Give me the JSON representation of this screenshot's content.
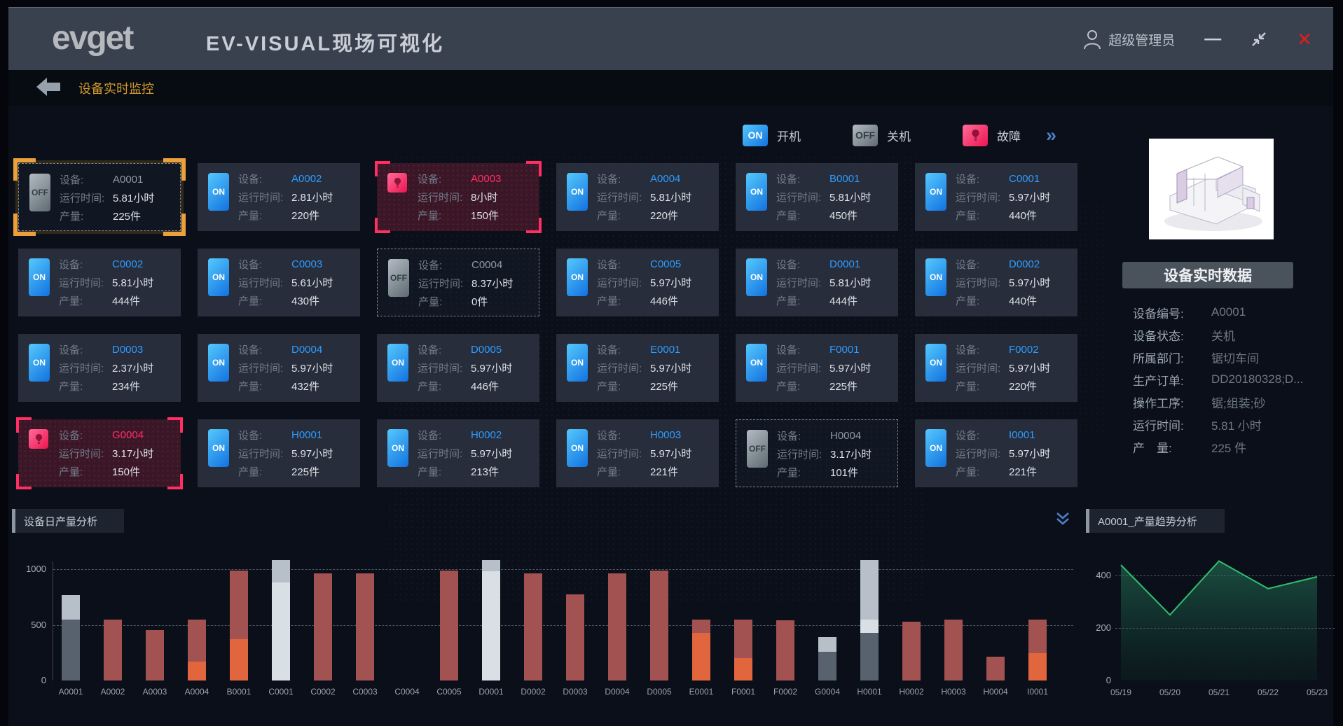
{
  "titlebar": {
    "logo": "evget",
    "title": "EV-VISUAL现场可视化",
    "user": "超级管理员",
    "icons": {
      "minimize": "—",
      "close": "✕"
    }
  },
  "breadcrumb": {
    "label": "设备实时监控"
  },
  "legend": {
    "on_badge": "ON",
    "on": "开机",
    "off_badge": "OFF",
    "off": "关机",
    "fault": "故障",
    "more": "»"
  },
  "card_labels": {
    "device": "设备:",
    "runtime": "运行时间:",
    "output": "产量:",
    "on_badge": "ON",
    "off_badge": "OFF"
  },
  "devices": [
    {
      "id": "A0001",
      "status": "off",
      "runtime": "5.81小时",
      "output": "225件",
      "selected": true
    },
    {
      "id": "A0002",
      "status": "on",
      "runtime": "2.81小时",
      "output": "220件"
    },
    {
      "id": "A0003",
      "status": "fault",
      "runtime": "8小时",
      "output": "150件"
    },
    {
      "id": "A0004",
      "status": "on",
      "runtime": "5.81小时",
      "output": "220件"
    },
    {
      "id": "B0001",
      "status": "on",
      "runtime": "5.81小时",
      "output": "450件"
    },
    {
      "id": "C0001",
      "status": "on",
      "runtime": "5.97小时",
      "output": "440件"
    },
    {
      "id": "C0002",
      "status": "on",
      "runtime": "5.81小时",
      "output": "444件"
    },
    {
      "id": "C0003",
      "status": "on",
      "runtime": "5.61小时",
      "output": "430件"
    },
    {
      "id": "C0004",
      "status": "off",
      "runtime": "8.37小时",
      "output": "0件"
    },
    {
      "id": "C0005",
      "status": "on",
      "runtime": "5.97小时",
      "output": "446件"
    },
    {
      "id": "D0001",
      "status": "on",
      "runtime": "5.81小时",
      "output": "444件"
    },
    {
      "id": "D0002",
      "status": "on",
      "runtime": "5.97小时",
      "output": "440件"
    },
    {
      "id": "D0003",
      "status": "on",
      "runtime": "2.37小时",
      "output": "234件"
    },
    {
      "id": "D0004",
      "status": "on",
      "runtime": "5.97小时",
      "output": "432件"
    },
    {
      "id": "D0005",
      "status": "on",
      "runtime": "5.97小时",
      "output": "446件"
    },
    {
      "id": "E0001",
      "status": "on",
      "runtime": "5.97小时",
      "output": "225件"
    },
    {
      "id": "F0001",
      "status": "on",
      "runtime": "5.97小时",
      "output": "225件"
    },
    {
      "id": "F0002",
      "status": "on",
      "runtime": "5.97小时",
      "output": "220件"
    },
    {
      "id": "G0004",
      "status": "fault",
      "runtime": "3.17小时",
      "output": "150件"
    },
    {
      "id": "H0001",
      "status": "on",
      "runtime": "5.97小时",
      "output": "225件"
    },
    {
      "id": "H0002",
      "status": "on",
      "runtime": "5.97小时",
      "output": "213件"
    },
    {
      "id": "H0003",
      "status": "on",
      "runtime": "5.97小时",
      "output": "221件"
    },
    {
      "id": "H0004",
      "status": "off",
      "runtime": "3.17小时",
      "output": "101件"
    },
    {
      "id": "I0001",
      "status": "on",
      "runtime": "5.97小时",
      "output": "221件"
    }
  ],
  "detail_panel": {
    "title": "设备实时数据",
    "rows": [
      {
        "label": "设备编号:",
        "value": "A0001"
      },
      {
        "label": "设备状态:",
        "value": "关机"
      },
      {
        "label": "所属部门:",
        "value": "锯切车间"
      },
      {
        "label": "生产订单:",
        "value": "DD20180328;D..."
      },
      {
        "label": "操作工序:",
        "value": "锯;组装;砂"
      },
      {
        "label": "运行时间:",
        "value": "5.81 小时"
      },
      {
        "label": "产　量:",
        "value": "225 件"
      }
    ]
  },
  "chart_data": [
    {
      "type": "bar",
      "title": "设备日产量分析",
      "stacked": true,
      "ylim": [
        0,
        1100
      ],
      "yticks": [
        0,
        500,
        1000
      ],
      "grid": "dashed-horizontal",
      "legend_position": "none",
      "palette": {
        "red": "#a35252",
        "orange": "#e1663e",
        "slate": "#57626e",
        "lightgray": "#b7c0c8",
        "white": "#d9e0e5"
      },
      "categories": [
        "A0001",
        "A0002",
        "A0003",
        "A0004",
        "B0001",
        "C0001",
        "C0002",
        "C0003",
        "C0004",
        "C0005",
        "D0001",
        "D0002",
        "D0003",
        "D0004",
        "D0005",
        "E0001",
        "F0001",
        "F0002",
        "G0004",
        "H0001",
        "H0002",
        "H0003",
        "H0004",
        "I0001"
      ],
      "bars": [
        [
          {
            "color": "slate",
            "value": 550
          },
          {
            "color": "lightgray",
            "value": 220
          }
        ],
        [
          {
            "color": "red",
            "value": 545
          }
        ],
        [
          {
            "color": "red",
            "value": 450
          }
        ],
        [
          {
            "color": "orange",
            "value": 170
          },
          {
            "color": "red",
            "value": 375
          }
        ],
        [
          {
            "color": "orange",
            "value": 370
          },
          {
            "color": "red",
            "value": 620
          }
        ],
        [
          {
            "color": "white",
            "value": 880
          },
          {
            "color": "lightgray",
            "value": 200
          }
        ],
        [
          {
            "color": "red",
            "value": 960
          }
        ],
        [
          {
            "color": "red",
            "value": 965
          }
        ],
        [],
        [
          {
            "color": "red",
            "value": 985
          }
        ],
        [
          {
            "color": "white",
            "value": 980
          },
          {
            "color": "lightgray",
            "value": 100
          }
        ],
        [
          {
            "color": "red",
            "value": 960
          }
        ],
        [
          {
            "color": "red",
            "value": 775
          }
        ],
        [
          {
            "color": "red",
            "value": 965
          }
        ],
        [
          {
            "color": "red",
            "value": 985
          }
        ],
        [
          {
            "color": "orange",
            "value": 430
          },
          {
            "color": "red",
            "value": 120
          }
        ],
        [
          {
            "color": "orange",
            "value": 200
          },
          {
            "color": "red",
            "value": 345
          }
        ],
        [
          {
            "color": "red",
            "value": 540
          }
        ],
        [
          {
            "color": "slate",
            "value": 260
          },
          {
            "color": "lightgray",
            "value": 130
          }
        ],
        [
          {
            "color": "slate",
            "value": 430
          },
          {
            "color": "white",
            "value": 120
          },
          {
            "color": "lightgray",
            "value": 530
          }
        ],
        [
          {
            "color": "red",
            "value": 530
          }
        ],
        [
          {
            "color": "red",
            "value": 545
          }
        ],
        [
          {
            "color": "red",
            "value": 215
          }
        ],
        [
          {
            "color": "orange",
            "value": 245
          },
          {
            "color": "red",
            "value": 300
          }
        ]
      ]
    },
    {
      "type": "line",
      "title": "A0001_产量趋势分析",
      "x": [
        "05/19",
        "05/20",
        "05/21",
        "05/22",
        "05/23"
      ],
      "values": [
        440,
        250,
        455,
        350,
        395
      ],
      "ylim": [
        0,
        480
      ],
      "yticks": [
        0,
        200,
        400
      ],
      "grid": "dashed-horizontal",
      "line_color": "#2fbf71",
      "area_fill_top": "rgba(40,130,95,0.55)",
      "area_fill_bottom": "rgba(14,44,38,0.30)"
    }
  ]
}
